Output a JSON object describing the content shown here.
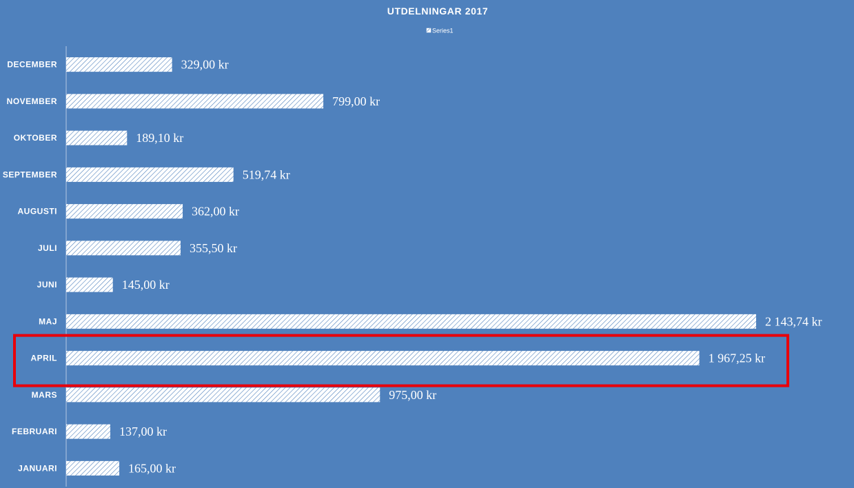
{
  "chart_data": {
    "type": "bar",
    "orientation": "horizontal",
    "title": "UTDELNINGAR 2017",
    "legend": {
      "entries": [
        "Series1"
      ],
      "position": "top"
    },
    "categories": [
      "DECEMBER",
      "NOVEMBER",
      "OKTOBER",
      "SEPTEMBER",
      "AUGUSTI",
      "JULI",
      "JUNI",
      "MAJ",
      "APRIL",
      "MARS",
      "FEBRUARI",
      "JANUARI"
    ],
    "series": [
      {
        "name": "Series1",
        "values": [
          329.0,
          799.0,
          189.1,
          519.74,
          362.0,
          355.5,
          145.0,
          2143.74,
          1967.25,
          975.0,
          137.0,
          165.0
        ],
        "labels": [
          "329,00 kr",
          "799,00 kr",
          "189,10 kr",
          "519,74 kr",
          "362,00 kr",
          "355,50 kr",
          "145,00 kr",
          "2 143,74 kr",
          "1 967,25 kr",
          "975,00 kr",
          "137,00 kr",
          "165,00 kr"
        ]
      }
    ],
    "xlim": [
      0,
      2143.74
    ],
    "grid": false,
    "highlight": {
      "category": "APRIL",
      "color": "#e8000b"
    },
    "colors": {
      "background": "#4f81bd",
      "bar_fill": "#ffffff",
      "bar_hatch": "#4f81bd",
      "text": "#ffffff",
      "axis": "#b4c8e4"
    }
  }
}
